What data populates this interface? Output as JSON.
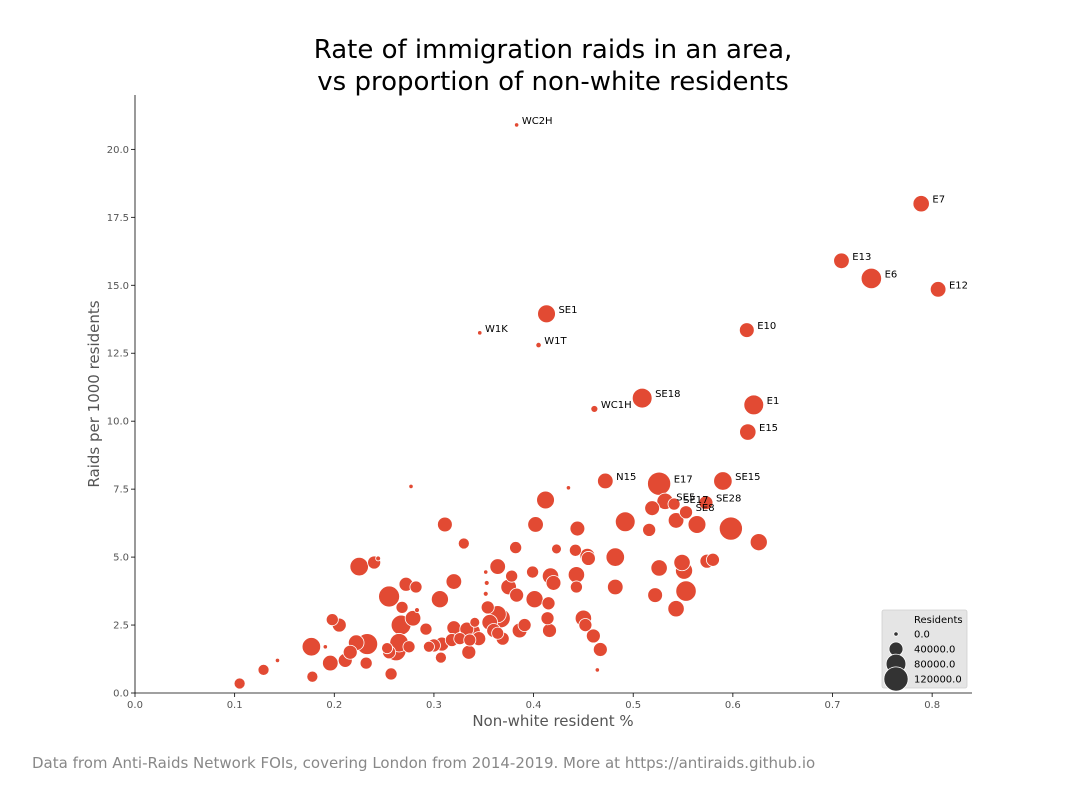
{
  "chart_data": {
    "type": "scatter",
    "title_lines": [
      "Rate of immigration raids in an area,",
      "vs proportion of non-white residents"
    ],
    "xlabel": "Non-white resident %",
    "ylabel": "Raids per 1000 residents",
    "xlim": [
      0.0,
      0.84
    ],
    "ylim": [
      0.0,
      22.0
    ],
    "x_ticks": [
      "0.0",
      "0.1",
      "0.2",
      "0.3",
      "0.4",
      "0.5",
      "0.6",
      "0.7",
      "0.8"
    ],
    "y_ticks": [
      "0.0",
      "2.5",
      "5.0",
      "7.5",
      "10.0",
      "12.5",
      "15.0",
      "17.5",
      "20.0"
    ],
    "grid": false,
    "point_color": "#e24a33",
    "legend": {
      "placement": "bottom-right",
      "title": "Residents",
      "entries": [
        {
          "label": "0.0",
          "value": 0
        },
        {
          "label": "40000.0",
          "value": 40000
        },
        {
          "label": "80000.0",
          "value": 80000
        },
        {
          "label": "120000.0",
          "value": 120000
        }
      ]
    },
    "labeled_points": [
      {
        "label": "WC2H",
        "x": 0.383,
        "y": 20.9,
        "residents": 2000
      },
      {
        "label": "E7",
        "x": 0.789,
        "y": 18.0,
        "residents": 55000
      },
      {
        "label": "E13",
        "x": 0.709,
        "y": 15.9,
        "residents": 50000
      },
      {
        "label": "E6",
        "x": 0.739,
        "y": 15.25,
        "residents": 85000
      },
      {
        "label": "E12",
        "x": 0.806,
        "y": 14.85,
        "residents": 50000
      },
      {
        "label": "SE1",
        "x": 0.413,
        "y": 13.95,
        "residents": 65000
      },
      {
        "label": "W1K",
        "x": 0.346,
        "y": 13.25,
        "residents": 4000
      },
      {
        "label": "E10",
        "x": 0.614,
        "y": 13.35,
        "residents": 45000
      },
      {
        "label": "W1T",
        "x": 0.405,
        "y": 12.8,
        "residents": 6000
      },
      {
        "label": "SE18",
        "x": 0.509,
        "y": 10.85,
        "residents": 80000
      },
      {
        "label": "E1",
        "x": 0.621,
        "y": 10.6,
        "residents": 80000
      },
      {
        "label": "WC1H",
        "x": 0.461,
        "y": 10.45,
        "residents": 10000
      },
      {
        "label": "E15",
        "x": 0.615,
        "y": 9.6,
        "residents": 55000
      },
      {
        "label": "N15",
        "x": 0.472,
        "y": 7.8,
        "residents": 50000
      },
      {
        "label": "E17",
        "x": 0.526,
        "y": 7.7,
        "residents": 110000
      },
      {
        "label": "SE15",
        "x": 0.59,
        "y": 7.8,
        "residents": 70000
      },
      {
        "label": "SE5",
        "x": 0.532,
        "y": 7.05,
        "residents": 55000
      },
      {
        "label": "SE17",
        "x": 0.541,
        "y": 6.95,
        "residents": 30000
      },
      {
        "label": "SE28",
        "x": 0.573,
        "y": 7.0,
        "residents": 40000
      },
      {
        "label": "SE8",
        "x": 0.553,
        "y": 6.65,
        "residents": 35000
      }
    ],
    "other_points": [
      [
        0.105,
        0.35,
        25000
      ],
      [
        0.129,
        0.85,
        25000
      ],
      [
        0.143,
        1.2,
        4000
      ],
      [
        0.178,
        0.6,
        25000
      ],
      [
        0.177,
        1.7,
        70000
      ],
      [
        0.191,
        1.7,
        4000
      ],
      [
        0.196,
        1.1,
        50000
      ],
      [
        0.198,
        2.7,
        30000
      ],
      [
        0.205,
        2.5,
        40000
      ],
      [
        0.211,
        1.2,
        40000
      ],
      [
        0.216,
        1.5,
        40000
      ],
      [
        0.222,
        1.85,
        50000
      ],
      [
        0.225,
        4.65,
        70000
      ],
      [
        0.232,
        1.1,
        30000
      ],
      [
        0.233,
        1.8,
        90000
      ],
      [
        0.24,
        4.8,
        35000
      ],
      [
        0.244,
        4.95,
        5000
      ],
      [
        0.253,
        1.65,
        25000
      ],
      [
        0.255,
        3.55,
        90000
      ],
      [
        0.255,
        1.5,
        35000
      ],
      [
        0.257,
        0.7,
        30000
      ],
      [
        0.262,
        1.55,
        80000
      ],
      [
        0.265,
        1.85,
        70000
      ],
      [
        0.267,
        2.5,
        80000
      ],
      [
        0.268,
        3.15,
        30000
      ],
      [
        0.272,
        4.0,
        40000
      ],
      [
        0.275,
        1.7,
        30000
      ],
      [
        0.277,
        7.6,
        4000
      ],
      [
        0.279,
        2.75,
        50000
      ],
      [
        0.282,
        3.9,
        30000
      ],
      [
        0.283,
        3.05,
        5000
      ],
      [
        0.292,
        2.35,
        30000
      ],
      [
        0.295,
        1.7,
        25000
      ],
      [
        0.3,
        1.75,
        35000
      ],
      [
        0.306,
        3.45,
        60000
      ],
      [
        0.307,
        1.3,
        25000
      ],
      [
        0.308,
        1.8,
        40000
      ],
      [
        0.311,
        6.2,
        45000
      ],
      [
        0.318,
        1.95,
        35000
      ],
      [
        0.32,
        2.4,
        40000
      ],
      [
        0.32,
        4.1,
        50000
      ],
      [
        0.326,
        2.0,
        30000
      ],
      [
        0.33,
        5.5,
        25000
      ],
      [
        0.333,
        2.35,
        40000
      ],
      [
        0.335,
        1.5,
        40000
      ],
      [
        0.336,
        1.95,
        30000
      ],
      [
        0.338,
        2.25,
        60000
      ],
      [
        0.341,
        2.6,
        20000
      ],
      [
        0.345,
        2.0,
        40000
      ],
      [
        0.352,
        3.65,
        5000
      ],
      [
        0.352,
        4.45,
        3000
      ],
      [
        0.353,
        4.05,
        5000
      ],
      [
        0.354,
        3.15,
        35000
      ],
      [
        0.356,
        2.6,
        50000
      ],
      [
        0.36,
        2.3,
        40000
      ],
      [
        0.364,
        2.9,
        60000
      ],
      [
        0.364,
        4.65,
        50000
      ],
      [
        0.364,
        2.2,
        30000
      ],
      [
        0.367,
        2.75,
        75000
      ],
      [
        0.369,
        2.0,
        35000
      ],
      [
        0.375,
        3.9,
        50000
      ],
      [
        0.378,
        4.3,
        30000
      ],
      [
        0.382,
        5.35,
        30000
      ],
      [
        0.383,
        3.6,
        40000
      ],
      [
        0.386,
        2.3,
        45000
      ],
      [
        0.391,
        2.5,
        35000
      ],
      [
        0.399,
        4.45,
        30000
      ],
      [
        0.401,
        3.45,
        60000
      ],
      [
        0.402,
        6.2,
        50000
      ],
      [
        0.412,
        7.1,
        65000
      ],
      [
        0.414,
        2.75,
        35000
      ],
      [
        0.415,
        3.3,
        35000
      ],
      [
        0.416,
        2.3,
        40000
      ],
      [
        0.417,
        4.3,
        55000
      ],
      [
        0.42,
        4.05,
        45000
      ],
      [
        0.423,
        5.3,
        20000
      ],
      [
        0.435,
        7.55,
        3000
      ],
      [
        0.442,
        5.25,
        30000
      ],
      [
        0.443,
        3.9,
        30000
      ],
      [
        0.443,
        4.35,
        55000
      ],
      [
        0.444,
        6.05,
        45000
      ],
      [
        0.45,
        2.75,
        55000
      ],
      [
        0.452,
        2.5,
        35000
      ],
      [
        0.454,
        5.05,
        45000
      ],
      [
        0.455,
        4.95,
        40000
      ],
      [
        0.46,
        2.1,
        40000
      ],
      [
        0.464,
        0.85,
        3000
      ],
      [
        0.467,
        1.6,
        40000
      ],
      [
        0.482,
        3.9,
        50000
      ],
      [
        0.482,
        5.0,
        70000
      ],
      [
        0.492,
        6.3,
        80000
      ],
      [
        0.516,
        6.0,
        35000
      ],
      [
        0.519,
        6.8,
        45000
      ],
      [
        0.522,
        3.6,
        45000
      ],
      [
        0.526,
        4.6,
        55000
      ],
      [
        0.543,
        3.1,
        55000
      ],
      [
        0.543,
        6.35,
        50000
      ],
      [
        0.549,
        4.8,
        55000
      ],
      [
        0.551,
        4.5,
        60000
      ],
      [
        0.553,
        3.75,
        85000
      ],
      [
        0.564,
        6.2,
        65000
      ],
      [
        0.574,
        4.85,
        40000
      ],
      [
        0.58,
        4.9,
        35000
      ],
      [
        0.598,
        6.05,
        110000
      ],
      [
        0.626,
        5.55,
        60000
      ]
    ],
    "footnote": "Data from Anti-Raids Network FOIs, covering London from 2014-2019. More at https://antiraids.github.io"
  }
}
